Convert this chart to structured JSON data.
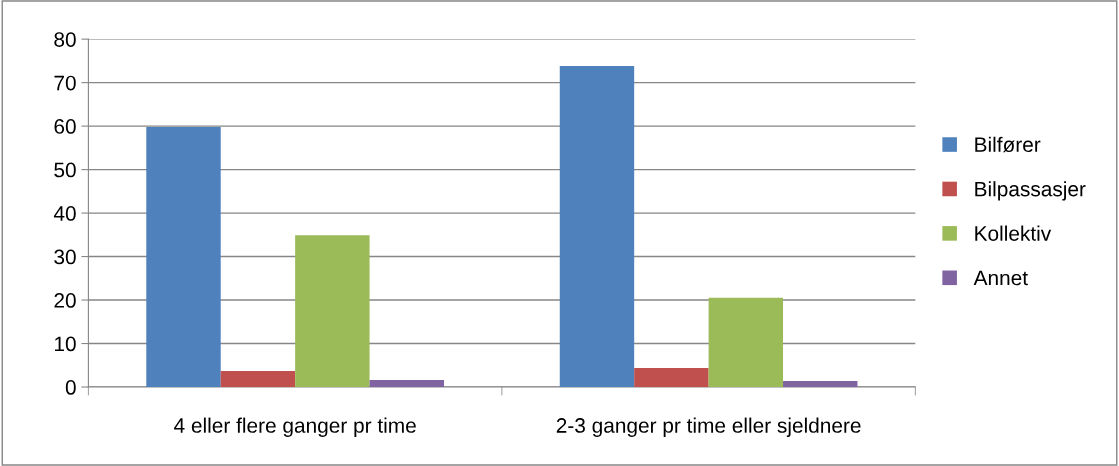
{
  "chart_data": {
    "type": "bar",
    "categories": [
      "4 eller flere ganger pr time",
      "2-3 ganger pr time eller sjeldnere"
    ],
    "series": [
      {
        "name": "Bilfører",
        "color": "#4f81bd",
        "values": [
          59.8,
          73.8
        ]
      },
      {
        "name": "Bilpassasjer",
        "color": "#c0504d",
        "values": [
          3.7,
          4.4
        ]
      },
      {
        "name": "Kollektiv",
        "color": "#9bbb59",
        "values": [
          34.9,
          20.5
        ]
      },
      {
        "name": "Annet",
        "color": "#8064a2",
        "values": [
          1.6,
          1.4
        ]
      }
    ],
    "ylim": [
      0,
      80
    ],
    "yticks": [
      0,
      10,
      20,
      30,
      40,
      50,
      60,
      70,
      80
    ],
    "grid": "y",
    "legend": "right"
  }
}
